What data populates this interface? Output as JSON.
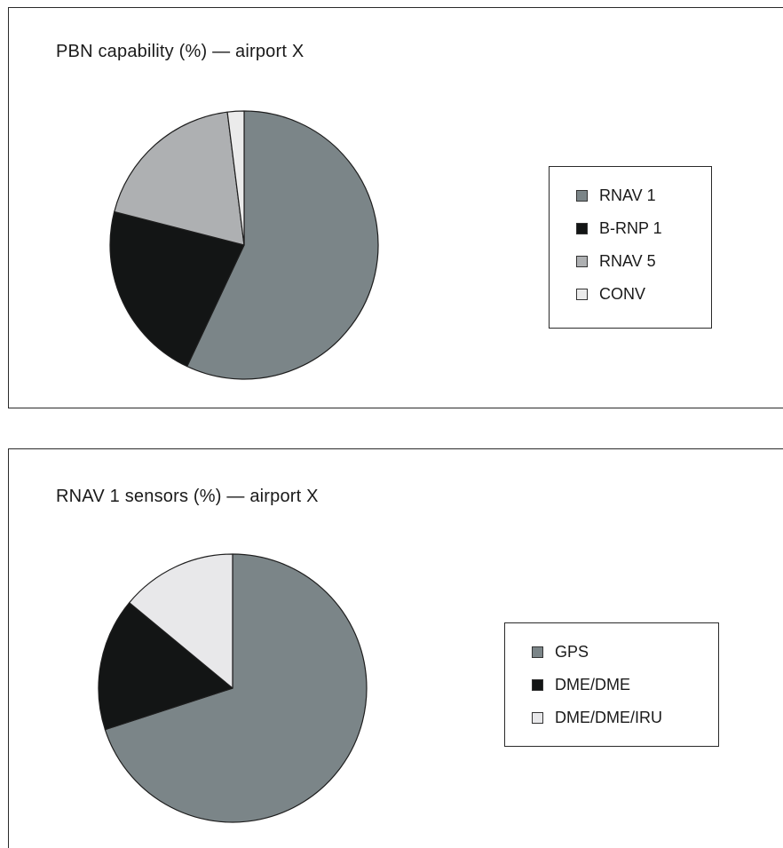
{
  "chart_data": [
    {
      "type": "pie",
      "title": "PBN capability (%) — airport X",
      "categories": [
        "RNAV 1",
        "B-RNP 1",
        "RNAV 5",
        "CONV"
      ],
      "values": [
        57,
        22,
        19,
        2
      ],
      "colors": [
        "#7b8588",
        "#131515",
        "#aeb0b2",
        "#ebebeb"
      ],
      "start_angle_deg": 0,
      "direction": "clockwise",
      "legend_position": "right"
    },
    {
      "type": "pie",
      "title": "RNAV 1 sensors (%) — airport X",
      "categories": [
        "GPS",
        "DME/DME",
        "DME/DME/IRU"
      ],
      "values": [
        70,
        16,
        14
      ],
      "colors": [
        "#7b8588",
        "#131515",
        "#e8e8ea"
      ],
      "start_angle_deg": 0,
      "direction": "clockwise",
      "legend_position": "right"
    }
  ]
}
